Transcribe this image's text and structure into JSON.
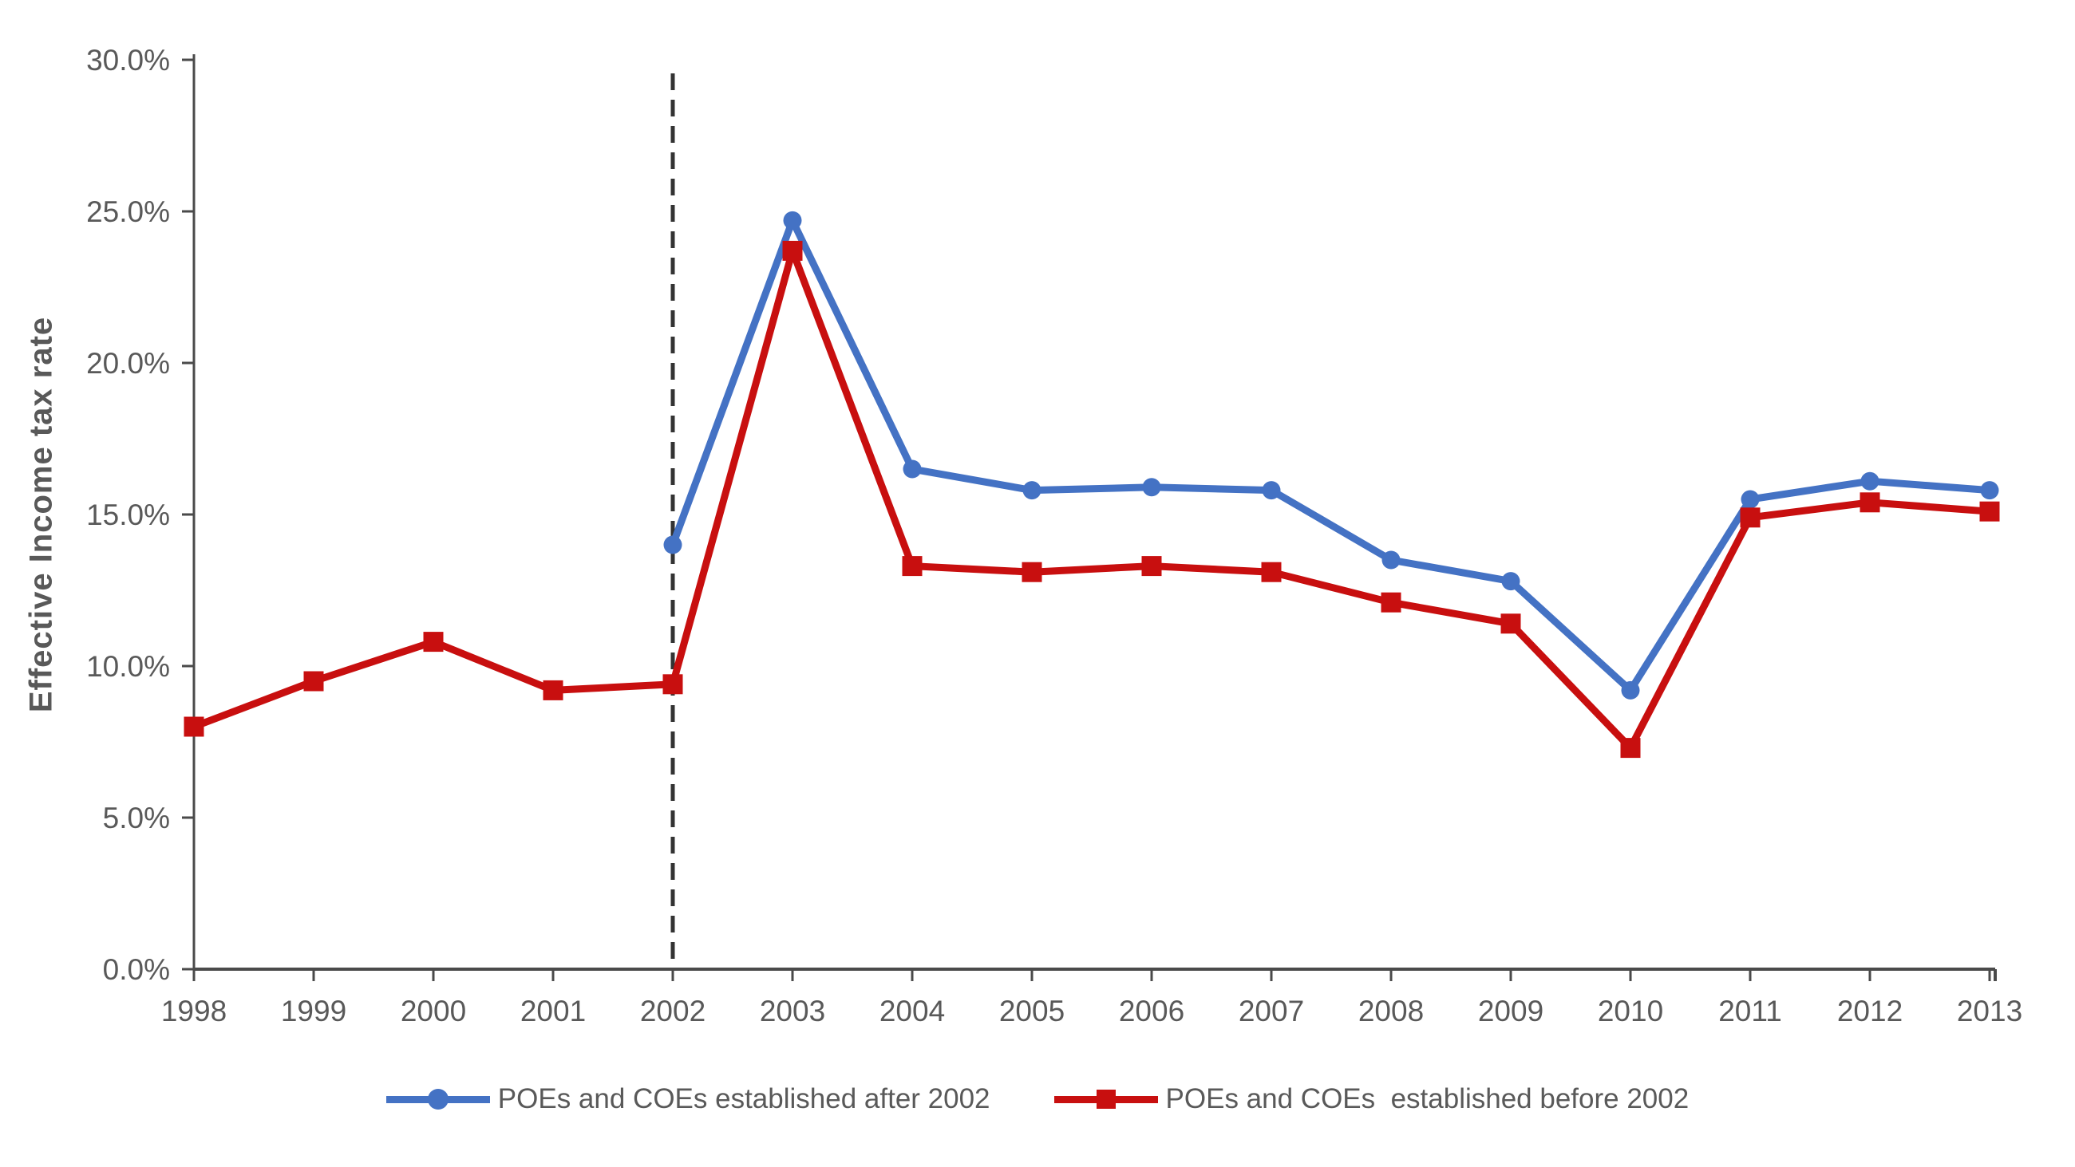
{
  "chart_data": {
    "type": "line",
    "title": "",
    "xlabel": "",
    "ylabel": "Effective Income tax rate",
    "ylim": [
      0,
      30
    ],
    "y_tick_values": [
      0,
      5,
      10,
      15,
      20,
      25,
      30
    ],
    "y_tick_labels": [
      "0.0%",
      "5.0%",
      "10.0%",
      "15.0%",
      "20.0%",
      "25.0%",
      "30.0%"
    ],
    "categories": [
      "1998",
      "1999",
      "2000",
      "2001",
      "2002",
      "2003",
      "2004",
      "2005",
      "2006",
      "2007",
      "2008",
      "2009",
      "2010",
      "2011",
      "2012",
      "2013"
    ],
    "grid": false,
    "legend_position": "bottom",
    "series": [
      {
        "name": "POEs and COEs established after 2002",
        "color": "#4472C4",
        "marker": "circle",
        "values": [
          null,
          null,
          null,
          null,
          14.0,
          24.7,
          16.5,
          15.8,
          15.9,
          15.8,
          13.5,
          12.8,
          9.2,
          15.5,
          16.1,
          15.8
        ]
      },
      {
        "name": "POEs and COEs  established before 2002",
        "color": "#C80F0F",
        "marker": "square",
        "values": [
          8.0,
          9.5,
          10.8,
          9.2,
          9.4,
          23.7,
          13.3,
          13.1,
          13.3,
          13.1,
          12.1,
          11.4,
          7.3,
          14.9,
          15.4,
          15.1
        ]
      }
    ],
    "annotations": [
      {
        "type": "vline",
        "at_category": "2002",
        "style": "dashed",
        "color": "#333333"
      }
    ],
    "axis_color": "#4a4a4a",
    "tick_label_color": "#595959"
  }
}
